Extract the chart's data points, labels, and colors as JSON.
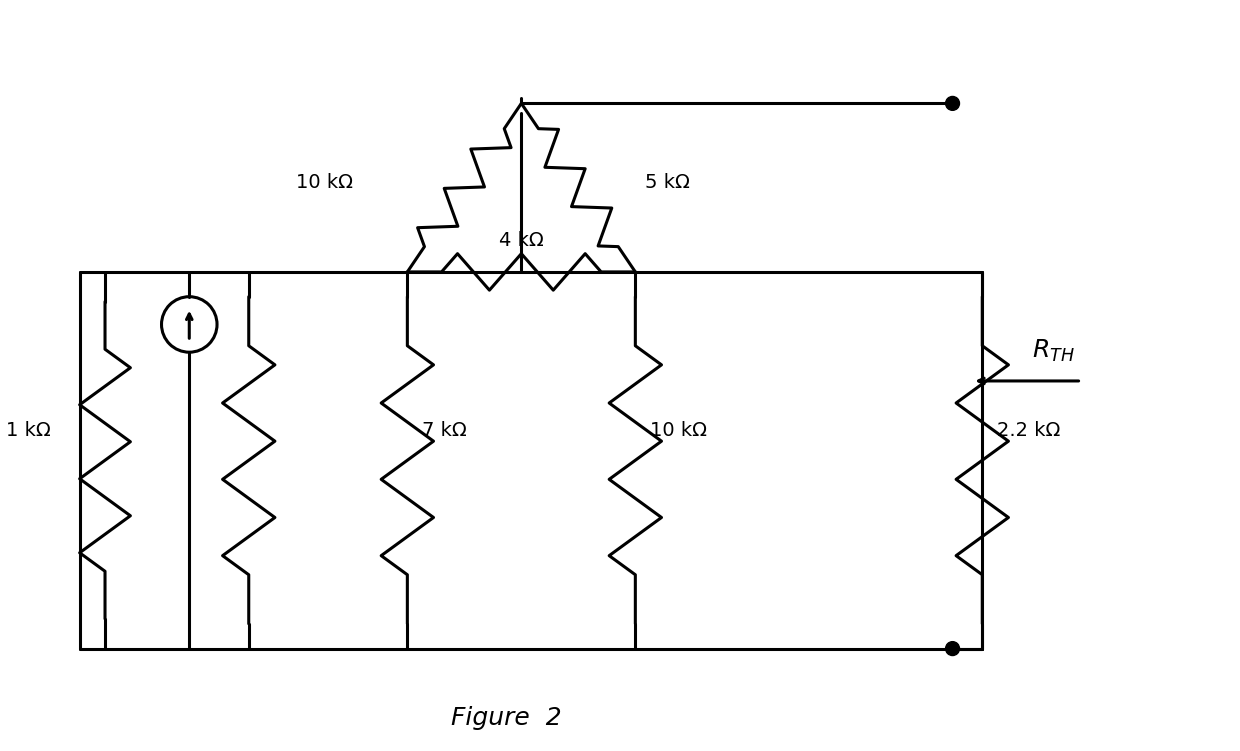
{
  "bg_color": "#ffffff",
  "line_color": "#000000",
  "line_width": 2.2,
  "fig_width": 12.4,
  "fig_height": 7.51,
  "figure_label": "Figure  2",
  "R_TH_label": "R_{TH}",
  "resistor_labels": {
    "R1kOhm": "1 kΩ",
    "R10kOhm_left": "10 kΩ",
    "R5kOhm": "5 kΩ",
    "R4kOhm": "4 kΩ",
    "R7kOhm": "7 kΩ",
    "R10kOhm_mid": "10 kΩ",
    "R2_2kOhm": "2.2 kΩ"
  }
}
